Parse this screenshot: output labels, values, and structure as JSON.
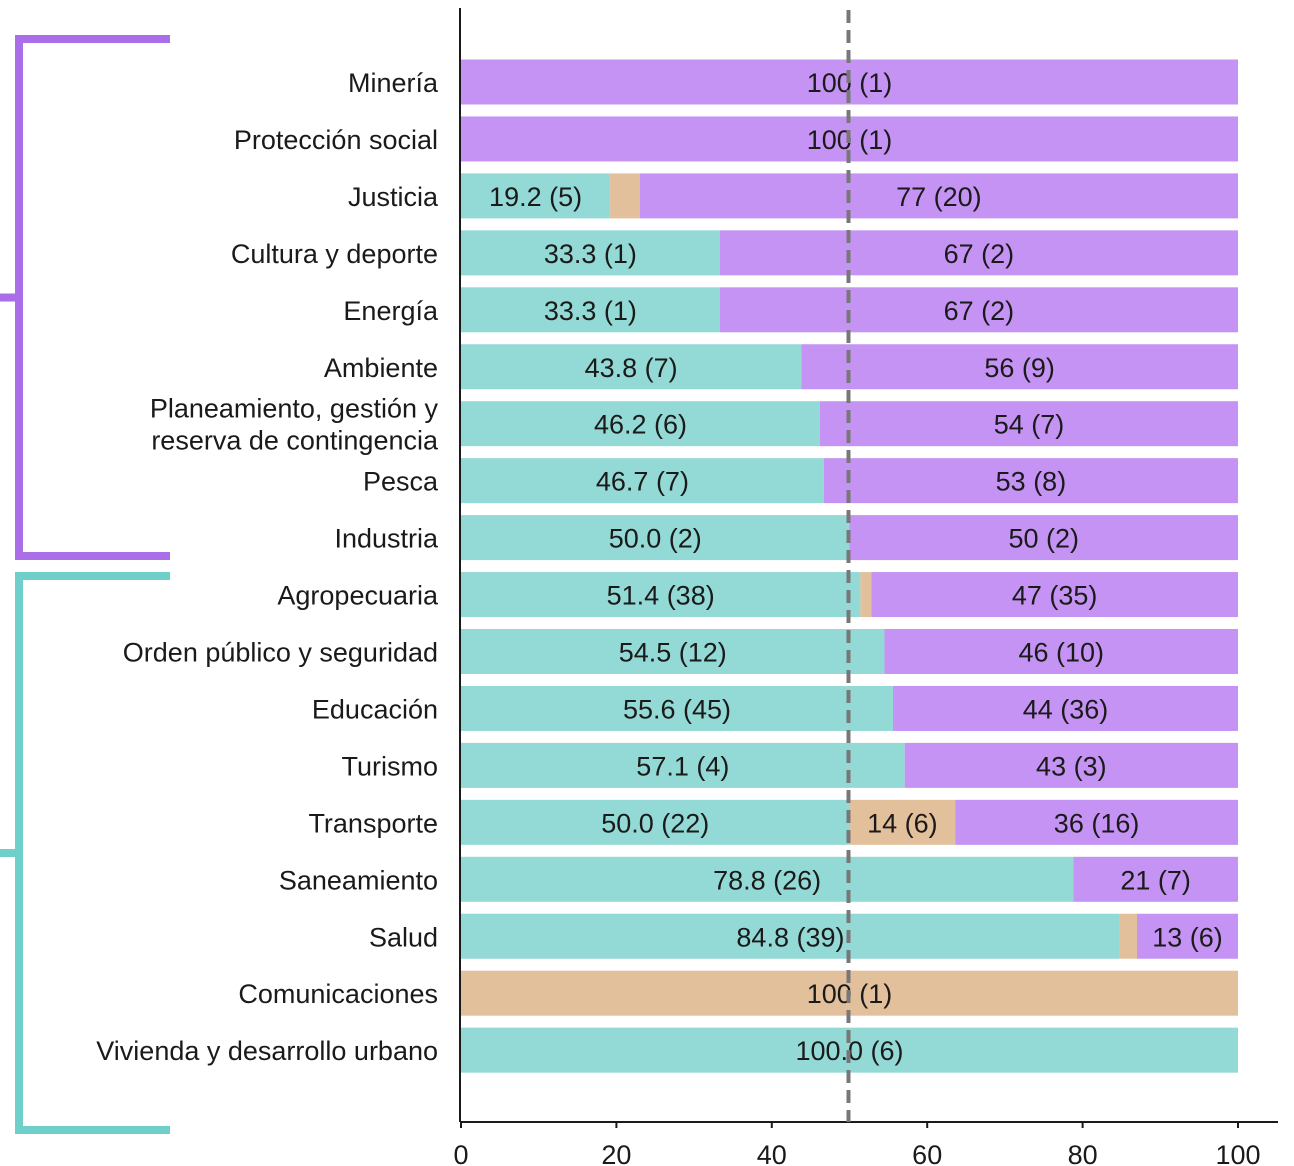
{
  "chart_data": {
    "type": "bar",
    "orientation": "horizontal",
    "stacked": true,
    "xlim": [
      0,
      100
    ],
    "xticks": [
      "0",
      "20",
      "40",
      "60",
      "80",
      "100"
    ],
    "reference_line": 50,
    "grid": false,
    "colors": {
      "teal": "#93d9d5",
      "peach": "#e3c09c",
      "purple": "#c493f3",
      "bracket_purple": "#a96ee8",
      "bracket_teal": "#6fcfca",
      "axis": "#1a1a1a",
      "refline": "#777777"
    },
    "groups": [
      {
        "color": "purple",
        "first_row": 0,
        "last_row": 8
      },
      {
        "color": "teal",
        "first_row": 9,
        "last_row": 16
      }
    ],
    "rows": [
      {
        "category": "Minería",
        "segments": [
          {
            "value": 100,
            "color": "purple",
            "label": "100 (1)"
          }
        ]
      },
      {
        "category": "Protección social",
        "segments": [
          {
            "value": 100,
            "color": "purple",
            "label": "100 (1)"
          }
        ]
      },
      {
        "category": "Justicia",
        "segments": [
          {
            "value": 19.2,
            "color": "teal",
            "label": "19.2 (5)"
          },
          {
            "value": 3.8,
            "color": "peach",
            "label": ""
          },
          {
            "value": 77,
            "color": "purple",
            "label": "77 (20)"
          }
        ]
      },
      {
        "category": "Cultura y deporte",
        "segments": [
          {
            "value": 33.3,
            "color": "teal",
            "label": "33.3 (1)"
          },
          {
            "value": 66.7,
            "color": "purple",
            "label": "67 (2)"
          }
        ]
      },
      {
        "category": "Energía",
        "segments": [
          {
            "value": 33.3,
            "color": "teal",
            "label": "33.3 (1)"
          },
          {
            "value": 66.7,
            "color": "purple",
            "label": "67 (2)"
          }
        ]
      },
      {
        "category": "Ambiente",
        "segments": [
          {
            "value": 43.8,
            "color": "teal",
            "label": "43.8 (7)"
          },
          {
            "value": 56.2,
            "color": "purple",
            "label": "56 (9)"
          }
        ]
      },
      {
        "category": [
          "Planeamiento, gestión y",
          "reserva de contingencia"
        ],
        "segments": [
          {
            "value": 46.2,
            "color": "teal",
            "label": "46.2 (6)"
          },
          {
            "value": 53.8,
            "color": "purple",
            "label": "54 (7)"
          }
        ]
      },
      {
        "category": "Pesca",
        "segments": [
          {
            "value": 46.7,
            "color": "teal",
            "label": "46.7 (7)"
          },
          {
            "value": 53.3,
            "color": "purple",
            "label": "53 (8)"
          }
        ]
      },
      {
        "category": "Industria",
        "segments": [
          {
            "value": 50.0,
            "color": "teal",
            "label": "50.0 (2)"
          },
          {
            "value": 50,
            "color": "purple",
            "label": "50 (2)"
          }
        ]
      },
      {
        "category": "Agropecuaria",
        "segments": [
          {
            "value": 51.4,
            "color": "teal",
            "label": "51.4 (38)"
          },
          {
            "value": 1.4,
            "color": "peach",
            "label": ""
          },
          {
            "value": 47.2,
            "color": "purple",
            "label": "47 (35)"
          }
        ]
      },
      {
        "category": "Orden público y seguridad",
        "segments": [
          {
            "value": 54.5,
            "color": "teal",
            "label": "54.5 (12)"
          },
          {
            "value": 45.5,
            "color": "purple",
            "label": "46 (10)"
          }
        ]
      },
      {
        "category": "Educación",
        "segments": [
          {
            "value": 55.6,
            "color": "teal",
            "label": "55.6 (45)"
          },
          {
            "value": 44.4,
            "color": "purple",
            "label": "44 (36)"
          }
        ]
      },
      {
        "category": "Turismo",
        "segments": [
          {
            "value": 57.1,
            "color": "teal",
            "label": "57.1 (4)"
          },
          {
            "value": 42.9,
            "color": "purple",
            "label": "43 (3)"
          }
        ]
      },
      {
        "category": "Transporte",
        "segments": [
          {
            "value": 50.0,
            "color": "teal",
            "label": "50.0 (22)"
          },
          {
            "value": 13.6,
            "color": "peach",
            "label": "14 (6)"
          },
          {
            "value": 36.4,
            "color": "purple",
            "label": "36 (16)"
          }
        ]
      },
      {
        "category": "Saneamiento",
        "segments": [
          {
            "value": 78.8,
            "color": "teal",
            "label": "78.8 (26)"
          },
          {
            "value": 21.2,
            "color": "purple",
            "label": "21 (7)"
          }
        ]
      },
      {
        "category": "Salud",
        "segments": [
          {
            "value": 84.8,
            "color": "teal",
            "label": "84.8 (39)"
          },
          {
            "value": 2.2,
            "color": "peach",
            "label": ""
          },
          {
            "value": 13,
            "color": "purple",
            "label": "13 (6)"
          }
        ]
      },
      {
        "category": "Comunicaciones",
        "segments": [
          {
            "value": 100,
            "color": "peach",
            "label": "100 (1)"
          }
        ]
      },
      {
        "category": "Vivienda y desarrollo urbano",
        "segments": [
          {
            "value": 100,
            "color": "teal",
            "label": "100.0 (6)"
          }
        ]
      }
    ]
  }
}
